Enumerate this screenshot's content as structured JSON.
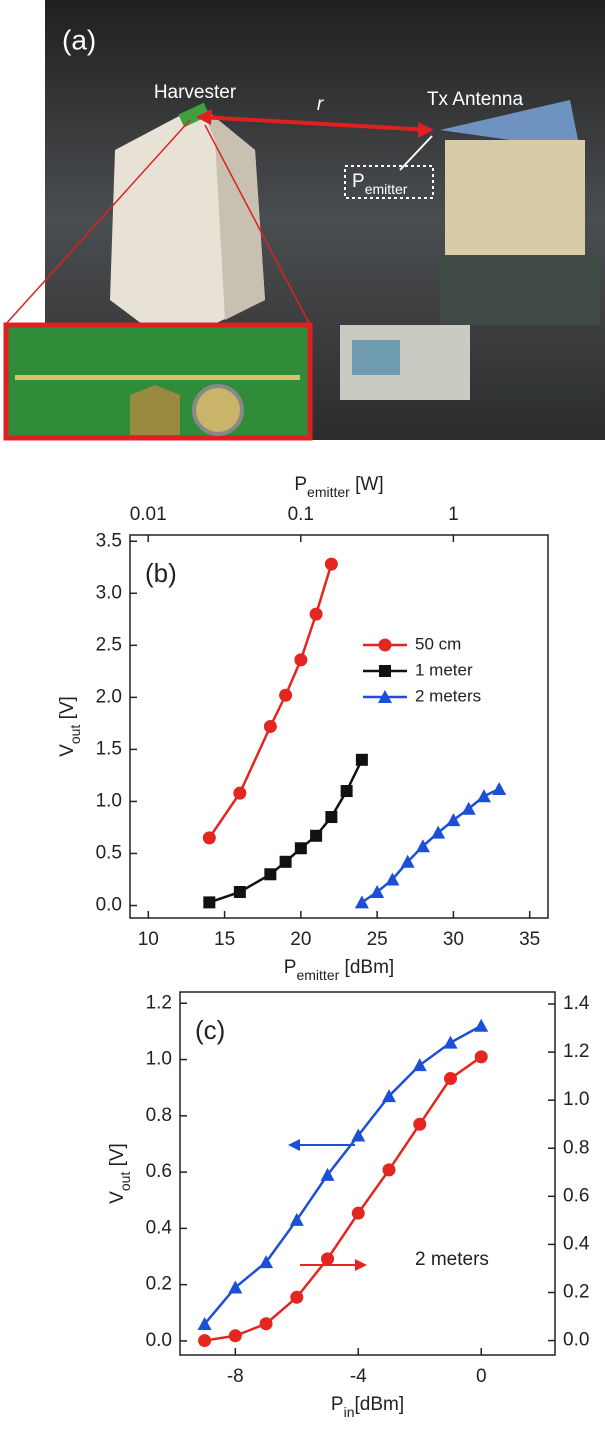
{
  "photo": {
    "panel_label": "(a)",
    "labels": [
      "Harvester",
      "r",
      "Tx Antenna"
    ],
    "emitter_label": {
      "base": "P",
      "sub": "emitter"
    }
  },
  "chart_data": [
    {
      "type": "line",
      "panel_label": "(b)",
      "x_label": {
        "base": "P",
        "sub": "emitter",
        "unit": " [dBm]"
      },
      "x2_label": {
        "base": "P",
        "sub": "emitter",
        "unit": " [W]"
      },
      "y_label": {
        "base": "V",
        "sub": "out",
        "unit": " [V]"
      },
      "xlim": [
        8.8,
        36.2
      ],
      "xticks": [
        10,
        15,
        20,
        25,
        30,
        35
      ],
      "x2lim": [
        0.0076,
        4.17
      ],
      "x2ticks": [
        0.01,
        0.1,
        1
      ],
      "x2scale": "log",
      "ylim": [
        -0.12,
        3.56
      ],
      "yticks": [
        {
          "value": 0,
          "label": "0.0"
        },
        0.5,
        {
          "value": 1,
          "label": "1.0"
        },
        1.5,
        {
          "value": 2,
          "label": "2.0"
        },
        2.5,
        {
          "value": 3,
          "label": "3.0"
        },
        3.5
      ],
      "legend": "upper right",
      "series": [
        {
          "name": "50 cm",
          "color": "#e32620",
          "marker": "circle",
          "x": [
            14,
            16,
            18,
            19,
            20,
            21,
            22
          ],
          "values": [
            0.65,
            1.08,
            1.72,
            2.02,
            2.36,
            2.8,
            3.28
          ]
        },
        {
          "name": "1 meter",
          "color": "#111111",
          "marker": "square",
          "x": [
            14,
            16,
            18,
            19,
            20,
            21,
            22,
            23,
            24
          ],
          "values": [
            0.03,
            0.13,
            0.3,
            0.42,
            0.55,
            0.67,
            0.85,
            1.1,
            1.4
          ]
        },
        {
          "name": "2 meters",
          "color": "#1c4fd8",
          "marker": "triangle",
          "x": [
            24,
            25,
            26,
            27,
            28,
            29,
            30,
            31,
            32,
            33
          ],
          "values": [
            0.03,
            0.13,
            0.25,
            0.42,
            0.57,
            0.7,
            0.82,
            0.93,
            1.05,
            1.12
          ]
        }
      ]
    },
    {
      "type": "line",
      "panel_label": "(c)",
      "annotation": "2 meters",
      "x_label": {
        "base": "P",
        "sub": "in",
        "unit": "[dBm]"
      },
      "y_label": {
        "base": "V",
        "sub": "out",
        "unit": " [V]"
      },
      "xlim": [
        -9.8,
        2.4
      ],
      "xticks": [
        -8,
        -4,
        0
      ],
      "ylim": [
        -0.05,
        1.24
      ],
      "yticks": [
        {
          "value": 0,
          "label": "0.0"
        },
        0.2,
        0.4,
        0.6,
        0.8,
        {
          "value": 1,
          "label": "1.0"
        },
        1.2
      ],
      "y2lim": [
        -0.06,
        1.45
      ],
      "y2ticks": [
        {
          "value": 0,
          "label": "0.0"
        },
        0.2,
        0.4,
        0.6,
        0.8,
        {
          "value": 1,
          "label": "1.0"
        },
        1.2,
        1.4
      ],
      "series": [
        {
          "color": "#1c4fd8",
          "marker": "triangle",
          "x": [
            -9,
            -8,
            -7,
            -6,
            -5,
            -4,
            -3,
            -2,
            -1,
            0
          ],
          "values": [
            0.06,
            0.19,
            0.28,
            0.43,
            0.59,
            0.73,
            0.87,
            0.98,
            1.06,
            1.12
          ]
        },
        {
          "color": "#e32620",
          "marker": "circle",
          "axis": "y2",
          "x": [
            -9,
            -8,
            -7,
            -6,
            -5,
            -4,
            -3,
            -2,
            -1,
            0
          ],
          "values": [
            0.0,
            0.02,
            0.07,
            0.18,
            0.34,
            0.53,
            0.71,
            0.9,
            1.09,
            1.18
          ]
        }
      ]
    }
  ]
}
